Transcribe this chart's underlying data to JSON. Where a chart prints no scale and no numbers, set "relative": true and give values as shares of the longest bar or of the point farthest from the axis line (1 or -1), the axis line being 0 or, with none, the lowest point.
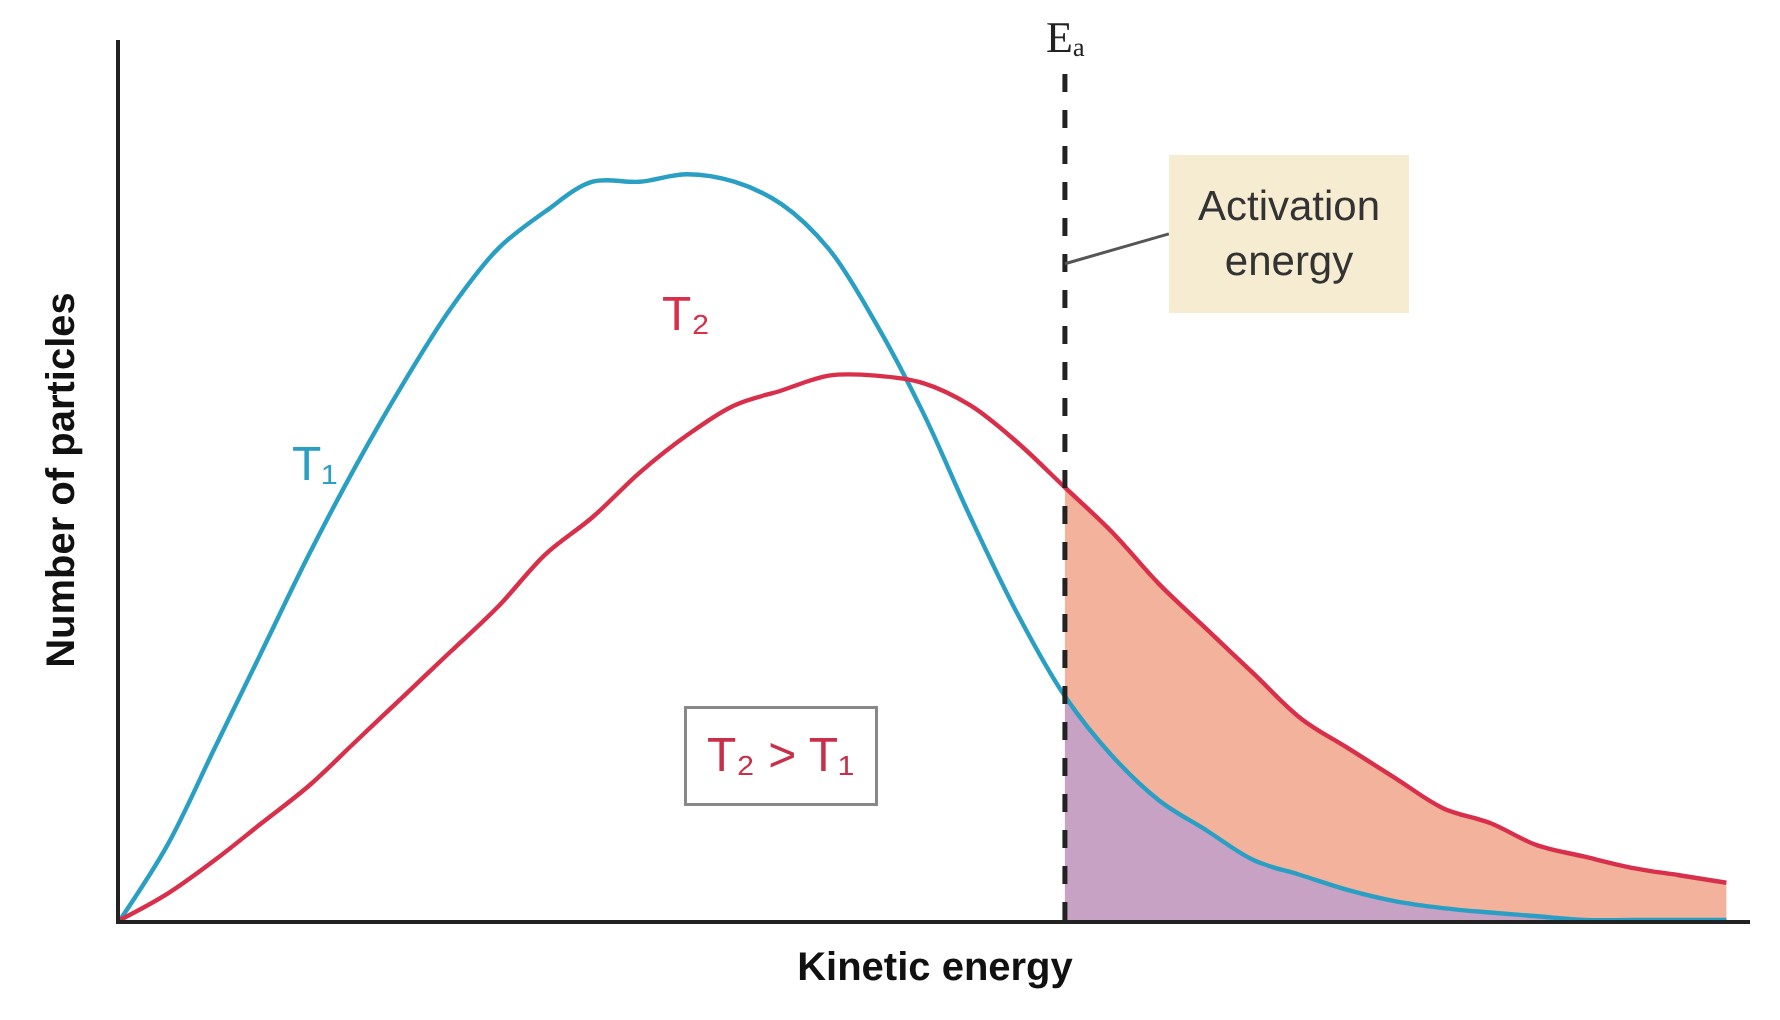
{
  "chart_data": {
    "type": "line",
    "relative": true,
    "xlabel": "Kinetic energy",
    "ylabel": "Number of particles",
    "categories": [
      null,
      null,
      null,
      null,
      null,
      null,
      null,
      null,
      null,
      null,
      null,
      null,
      null,
      null,
      null,
      null,
      null,
      null,
      null,
      null,
      null,
      null,
      null,
      null,
      null,
      null,
      null,
      null,
      null,
      null,
      null,
      null,
      null,
      null,
      null
    ],
    "series": [
      {
        "type": "area",
        "color": "#f2b29b",
        "values": [
          null,
          null,
          null,
          null,
          null,
          null,
          null,
          null,
          null,
          null,
          null,
          null,
          null,
          null,
          null,
          null,
          null,
          null,
          null,
          null,
          0.58,
          0.52,
          0.45,
          0.39,
          0.33,
          0.27,
          0.23,
          0.19,
          0.15,
          0.13,
          0.1,
          0.085,
          0.07,
          0.06,
          0.05
        ]
      },
      {
        "type": "area",
        "color": "#c7a2c4",
        "values": [
          null,
          null,
          null,
          null,
          null,
          null,
          null,
          null,
          null,
          null,
          null,
          null,
          null,
          null,
          null,
          null,
          null,
          null,
          null,
          null,
          0.3,
          0.22,
          0.16,
          0.12,
          0.08,
          0.06,
          0.04,
          0.025,
          0.016,
          0.01,
          0.005,
          0,
          0,
          0,
          0
        ]
      },
      {
        "name": "T₁",
        "color": "#2a9fc4",
        "values": [
          0,
          0.1,
          0.23,
          0.36,
          0.49,
          0.61,
          0.72,
          0.82,
          0.9,
          0.95,
          0.99,
          0.99,
          1.0,
          0.99,
          0.96,
          0.9,
          0.8,
          0.68,
          0.54,
          0.41,
          0.3,
          0.22,
          0.16,
          0.12,
          0.08,
          0.06,
          0.04,
          0.025,
          0.016,
          0.01,
          0.005,
          0,
          0,
          0,
          0
        ]
      },
      {
        "name": "T₂",
        "color": "#d8304a",
        "values": [
          0,
          0.035,
          0.08,
          0.13,
          0.18,
          0.24,
          0.3,
          0.36,
          0.42,
          0.49,
          0.54,
          0.6,
          0.65,
          0.69,
          0.71,
          0.73,
          0.73,
          0.72,
          0.69,
          0.64,
          0.58,
          0.52,
          0.45,
          0.39,
          0.33,
          0.27,
          0.23,
          0.19,
          0.15,
          0.13,
          0.1,
          0.085,
          0.07,
          0.06,
          0.05
        ]
      }
    ],
    "annotations": [
      "Activation energy",
      "T₂ > T₁",
      "Eₐ"
    ],
    "legend": false,
    "tick_labels": false
  }
}
